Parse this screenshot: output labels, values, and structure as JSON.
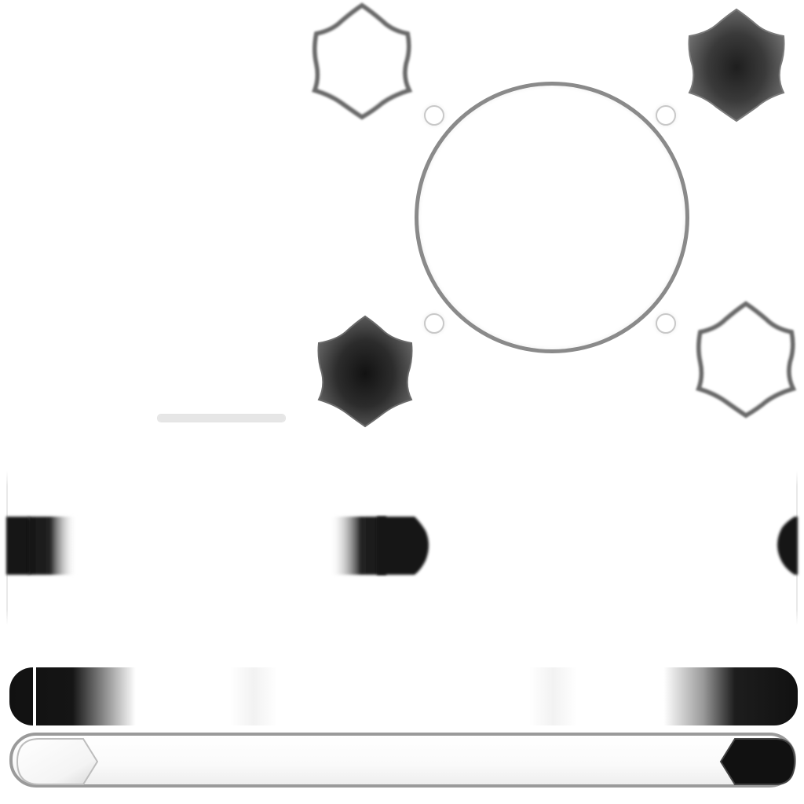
{
  "atlas": {
    "colors": {
      "background": "#ffffff",
      "light_fill": "#ffffff",
      "dark_fill": "#2a2a2a",
      "outline": "#8a8a8a",
      "knob_dark": "#151515"
    },
    "hex_buttons": [
      {
        "name": "hex-button-light-top-left",
        "state": "light",
        "icon": "hexagon-icon"
      },
      {
        "name": "hex-button-dark-top-right",
        "state": "dark",
        "icon": "hexagon-icon"
      },
      {
        "name": "hex-button-dark-mid-left",
        "state": "dark",
        "icon": "hexagon-icon"
      },
      {
        "name": "hex-button-light-mid-right",
        "state": "light",
        "icon": "hexagon-icon"
      }
    ],
    "progress_bar": {
      "fill_fraction": 1.0
    },
    "gradient_bar": {
      "marker_fraction": 0.03
    },
    "slider": {
      "left_knob": "light",
      "right_knob": "dark"
    }
  }
}
